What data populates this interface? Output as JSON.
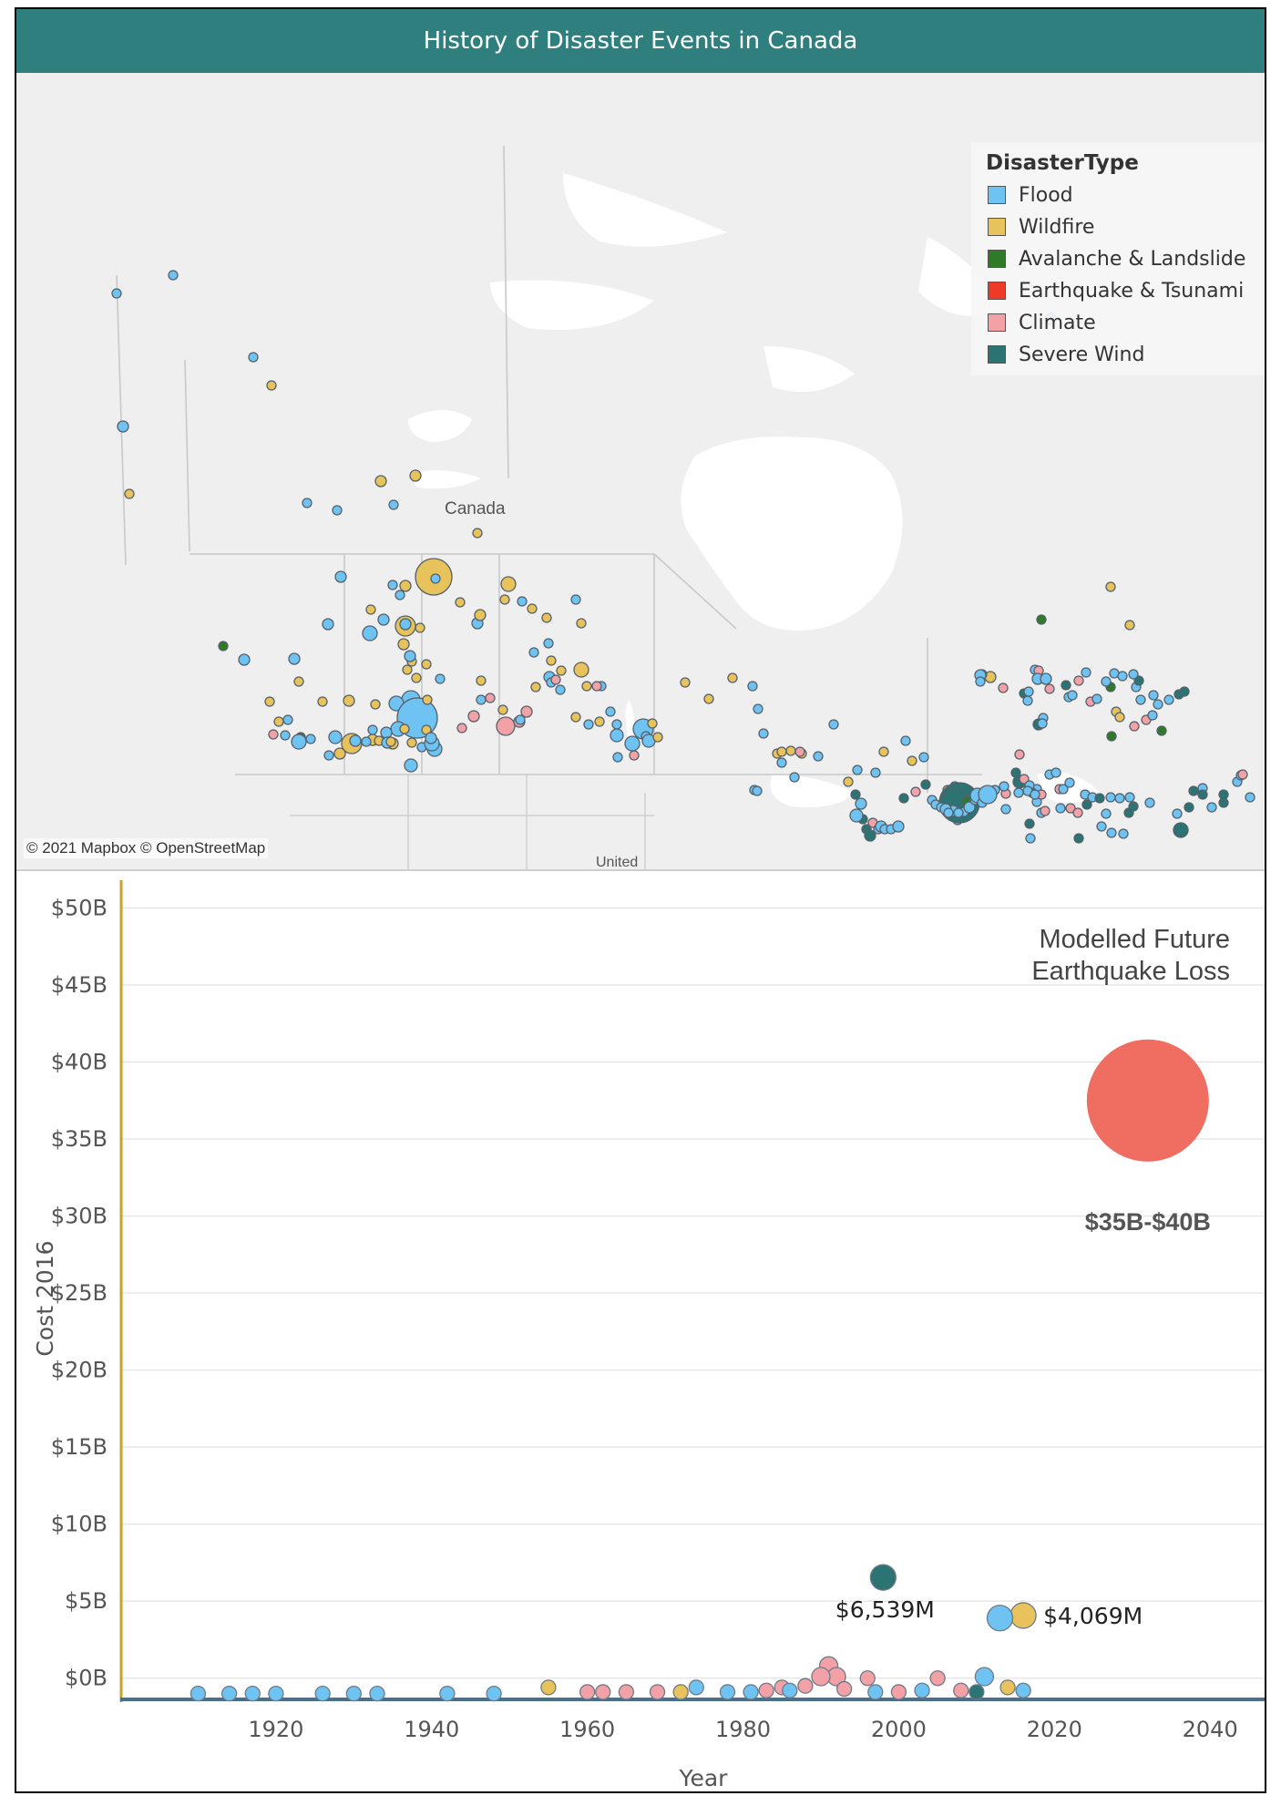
{
  "title": "History of Disaster Events in Canada",
  "legend": {
    "title": "DisasterType",
    "items": [
      {
        "label": "Flood",
        "color": "#6ec3f2"
      },
      {
        "label": "Wildfire",
        "color": "#e8c25a"
      },
      {
        "label": "Avalanche & Landslide",
        "color": "#2f7a28"
      },
      {
        "label": "Earthquake & Tsunami",
        "color": "#ee3b27"
      },
      {
        "label": "Climate",
        "color": "#f2a2a6"
      },
      {
        "label": "Severe Wind",
        "color": "#2c7373"
      }
    ]
  },
  "map": {
    "place_label": "Canada",
    "place_label_bottom": "United",
    "attribution": "© 2021 Mapbox © OpenStreetMap"
  },
  "chart_data": {
    "type": "scatter",
    "xlabel": "Year",
    "ylabel": "Cost 2016",
    "xlim": [
      1900,
      2047
    ],
    "ylim": [
      -1.2,
      50.5
    ],
    "x_ticks": [
      1920,
      1940,
      1960,
      1980,
      2000,
      2020,
      2040
    ],
    "y_ticks": [
      {
        "v": 0,
        "label": "$0B"
      },
      {
        "v": 5,
        "label": "$5B"
      },
      {
        "v": 10,
        "label": "$10B"
      },
      {
        "v": 15,
        "label": "$15B"
      },
      {
        "v": 20,
        "label": "$20B"
      },
      {
        "v": 25,
        "label": "$25B"
      },
      {
        "v": 30,
        "label": "$30B"
      },
      {
        "v": 35,
        "label": "$35B"
      },
      {
        "v": 40,
        "label": "$40B"
      },
      {
        "v": 45,
        "label": "$45B"
      },
      {
        "v": 50,
        "label": "$50B"
      }
    ],
    "grid": true,
    "points": [
      {
        "year": 1998,
        "cost": 6.539,
        "type": "Severe Wind",
        "label": "$6,539M"
      },
      {
        "year": 2016,
        "cost": 4.069,
        "type": "Wildfire",
        "label": "$4,069M"
      },
      {
        "year": 2013,
        "cost": 3.9,
        "type": "Flood"
      },
      {
        "year": 1991,
        "cost": 0.8,
        "type": "Climate"
      },
      {
        "year": 1992,
        "cost": 0.1,
        "type": "Climate"
      },
      {
        "year": 1990,
        "cost": 0.1,
        "type": "Climate"
      },
      {
        "year": 2011,
        "cost": 0.1,
        "type": "Flood"
      },
      {
        "year": 2005,
        "cost": 0.0,
        "type": "Climate"
      },
      {
        "year": 1996,
        "cost": 0.0,
        "type": "Climate"
      },
      {
        "year": 1974,
        "cost": -0.6,
        "type": "Flood"
      },
      {
        "year": 1955,
        "cost": -0.6,
        "type": "Wildfire"
      },
      {
        "year": 1985,
        "cost": -0.6,
        "type": "Climate"
      },
      {
        "year": 1988,
        "cost": -0.5,
        "type": "Climate"
      },
      {
        "year": 2014,
        "cost": -0.6,
        "type": "Wildfire"
      },
      {
        "year": 2016,
        "cost": -0.8,
        "type": "Flood"
      },
      {
        "year": 1983,
        "cost": -0.8,
        "type": "Climate"
      },
      {
        "year": 1981,
        "cost": -0.9,
        "type": "Flood"
      },
      {
        "year": 1978,
        "cost": -0.9,
        "type": "Flood"
      },
      {
        "year": 1993,
        "cost": -0.7,
        "type": "Climate"
      },
      {
        "year": 2000,
        "cost": -0.9,
        "type": "Climate"
      },
      {
        "year": 2003,
        "cost": -0.8,
        "type": "Flood"
      },
      {
        "year": 2008,
        "cost": -0.8,
        "type": "Climate"
      },
      {
        "year": 2010,
        "cost": -0.9,
        "type": "Severe Wind"
      },
      {
        "year": 1997,
        "cost": -0.9,
        "type": "Flood"
      },
      {
        "year": 1969,
        "cost": -0.9,
        "type": "Climate"
      },
      {
        "year": 1965,
        "cost": -0.9,
        "type": "Climate"
      },
      {
        "year": 1962,
        "cost": -0.9,
        "type": "Climate"
      },
      {
        "year": 1960,
        "cost": -0.9,
        "type": "Climate"
      },
      {
        "year": 1948,
        "cost": -1.0,
        "type": "Flood"
      },
      {
        "year": 1942,
        "cost": -1.0,
        "type": "Flood"
      },
      {
        "year": 1933,
        "cost": -1.0,
        "type": "Flood"
      },
      {
        "year": 1930,
        "cost": -1.0,
        "type": "Flood"
      },
      {
        "year": 1926,
        "cost": -1.0,
        "type": "Flood"
      },
      {
        "year": 1920,
        "cost": -1.0,
        "type": "Flood"
      },
      {
        "year": 1917,
        "cost": -1.0,
        "type": "Flood"
      },
      {
        "year": 1914,
        "cost": -1.0,
        "type": "Flood"
      },
      {
        "year": 1910,
        "cost": -1.0,
        "type": "Flood"
      },
      {
        "year": 1972,
        "cost": -0.9,
        "type": "Wildfire"
      },
      {
        "year": 1986,
        "cost": -0.8,
        "type": "Flood"
      }
    ],
    "future": {
      "title_line1": "Modelled Future",
      "title_line2": "Earthquake Loss",
      "range_label": "$35B-$40B",
      "year": 2032,
      "cost": 37.5,
      "type": "Earthquake & Tsunami"
    }
  }
}
